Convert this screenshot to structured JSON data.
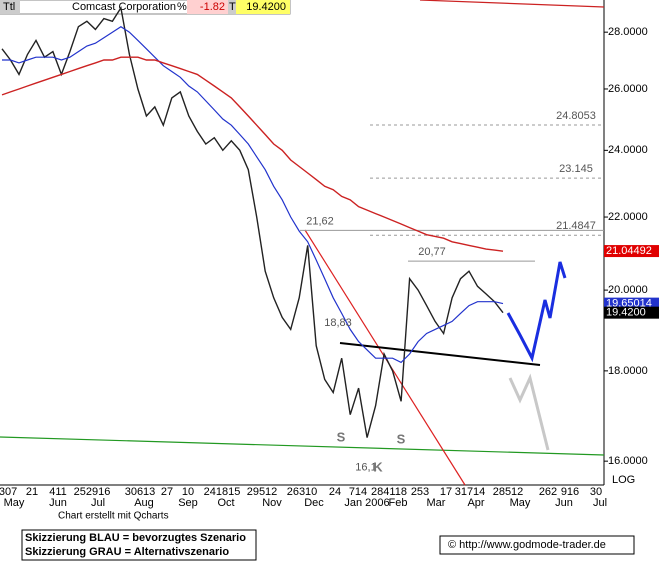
{
  "chart_data": {
    "type": "line",
    "header": {
      "symbol": "Ttl",
      "name": "Comcast Corporation",
      "change_label": "%",
      "change": -1.82,
      "last_label": "T",
      "last": {
        "value": 19.42,
        "label": "19.4200"
      }
    },
    "log_scale": true,
    "ylim": [
      15.51,
      29.2
    ],
    "yticks": [
      {
        "value": 16,
        "label": "16.0000"
      },
      {
        "value": 18,
        "label": "18.0000"
      },
      {
        "value": 20,
        "label": "20.0000"
      },
      {
        "value": 22,
        "label": "22.0000"
      },
      {
        "value": 24,
        "label": "24.0000"
      },
      {
        "value": 26,
        "label": "26.0000"
      },
      {
        "value": 28,
        "label": "28.0000"
      }
    ],
    "scale_label": "LOG",
    "months": [
      "May",
      "Jun",
      "Jul",
      "Aug",
      "Sep",
      "Oct",
      "Nov",
      "Dec",
      "Jan 2006",
      "Feb",
      "Mar",
      "Apr",
      "May",
      "Jun",
      "Jul"
    ],
    "days": [
      "307",
      "21",
      "411",
      "252916",
      "30613",
      "27",
      "10",
      "241815",
      "29512",
      "26310",
      "24",
      "714",
      "284118",
      "253",
      "17",
      "31714",
      "28512",
      "262",
      "916",
      "30"
    ],
    "series": [
      {
        "color": "#222222",
        "values": [
          27.4,
          27.0,
          26.5,
          27.2,
          27.7,
          27.1,
          27.3,
          26.5,
          27.3,
          28.2,
          28.4,
          28.1,
          28.5,
          28.4,
          28.9,
          27.2,
          26.0,
          25.1,
          25.4,
          24.8,
          25.7,
          25.9,
          25.1,
          24.6,
          24.2,
          24.4,
          24.0,
          24.3,
          24.0,
          23.4,
          22.0,
          20.5,
          19.8,
          19.3,
          19.0,
          19.8,
          21.2,
          18.6,
          17.8,
          17.5,
          18.3,
          17.0,
          17.6,
          16.5,
          17.2,
          18.4,
          18.0,
          17.3,
          20.3,
          20.0,
          19.6,
          19.2,
          18.9,
          19.8,
          20.3,
          20.5,
          20.1,
          19.9,
          19.7,
          19.42
        ]
      },
      {
        "color": "#2233cc",
        "values": [
          27.0,
          27.0,
          26.9,
          27.0,
          27.1,
          27.1,
          27.1,
          27.0,
          27.1,
          27.3,
          27.5,
          27.6,
          27.8,
          28.0,
          28.2,
          28.0,
          27.7,
          27.4,
          27.1,
          26.8,
          26.6,
          26.4,
          26.1,
          25.9,
          25.6,
          25.3,
          25.0,
          24.8,
          24.5,
          24.2,
          23.8,
          23.4,
          22.9,
          22.5,
          22.0,
          21.6,
          21.3,
          20.8,
          20.3,
          19.8,
          19.4,
          19.0,
          18.7,
          18.5,
          18.3,
          18.3,
          18.3,
          18.2,
          18.4,
          18.7,
          18.9,
          19.0,
          19.1,
          19.2,
          19.4,
          19.6,
          19.7,
          19.7,
          19.7,
          19.65
        ]
      },
      {
        "color": "#cc2222",
        "values": [
          25.8,
          25.9,
          26.0,
          26.1,
          26.2,
          26.3,
          26.4,
          26.5,
          26.6,
          26.7,
          26.8,
          26.9,
          27.0,
          27.0,
          27.1,
          27.1,
          27.1,
          27.0,
          27.0,
          26.9,
          26.8,
          26.7,
          26.6,
          26.5,
          26.3,
          26.1,
          25.9,
          25.7,
          25.4,
          25.1,
          24.8,
          24.5,
          24.2,
          24.0,
          23.7,
          23.5,
          23.3,
          23.1,
          22.9,
          22.8,
          22.6,
          22.5,
          22.3,
          22.2,
          22.1,
          22.0,
          21.9,
          21.8,
          21.7,
          21.6,
          21.5,
          21.45,
          21.4,
          21.3,
          21.25,
          21.2,
          21.15,
          21.1,
          21.07,
          21.04
        ]
      }
    ],
    "levels": [
      {
        "value": 24.8053,
        "label": "24.8053"
      },
      {
        "value": 23.145,
        "label": "23.145"
      },
      {
        "value": 21.4847,
        "label": "21.4847"
      },
      {
        "value": 21.62,
        "label": "21,62"
      },
      {
        "value": 20.77,
        "label": "20,77"
      }
    ],
    "flags": [
      {
        "value": 21.04492,
        "color": "#e00000"
      },
      {
        "value": 19.65014,
        "color": "#2233cc"
      },
      {
        "value": 19.42,
        "label": "19.4200",
        "color": "#000000"
      }
    ],
    "annotations": [
      {
        "value": 18.83,
        "label": "18,83"
      },
      {
        "value": 16.1,
        "label": "16,1"
      }
    ],
    "marks": [
      "S",
      "S",
      "K"
    ],
    "credit": "Chart erstellt mit Qcharts",
    "notes": [
      "Skizzierung BLAU = bevorzugtes Szenario",
      "Skizzierung GRAU = Alternativszenario"
    ],
    "source": "© http://www.godmode-trader.de"
  }
}
